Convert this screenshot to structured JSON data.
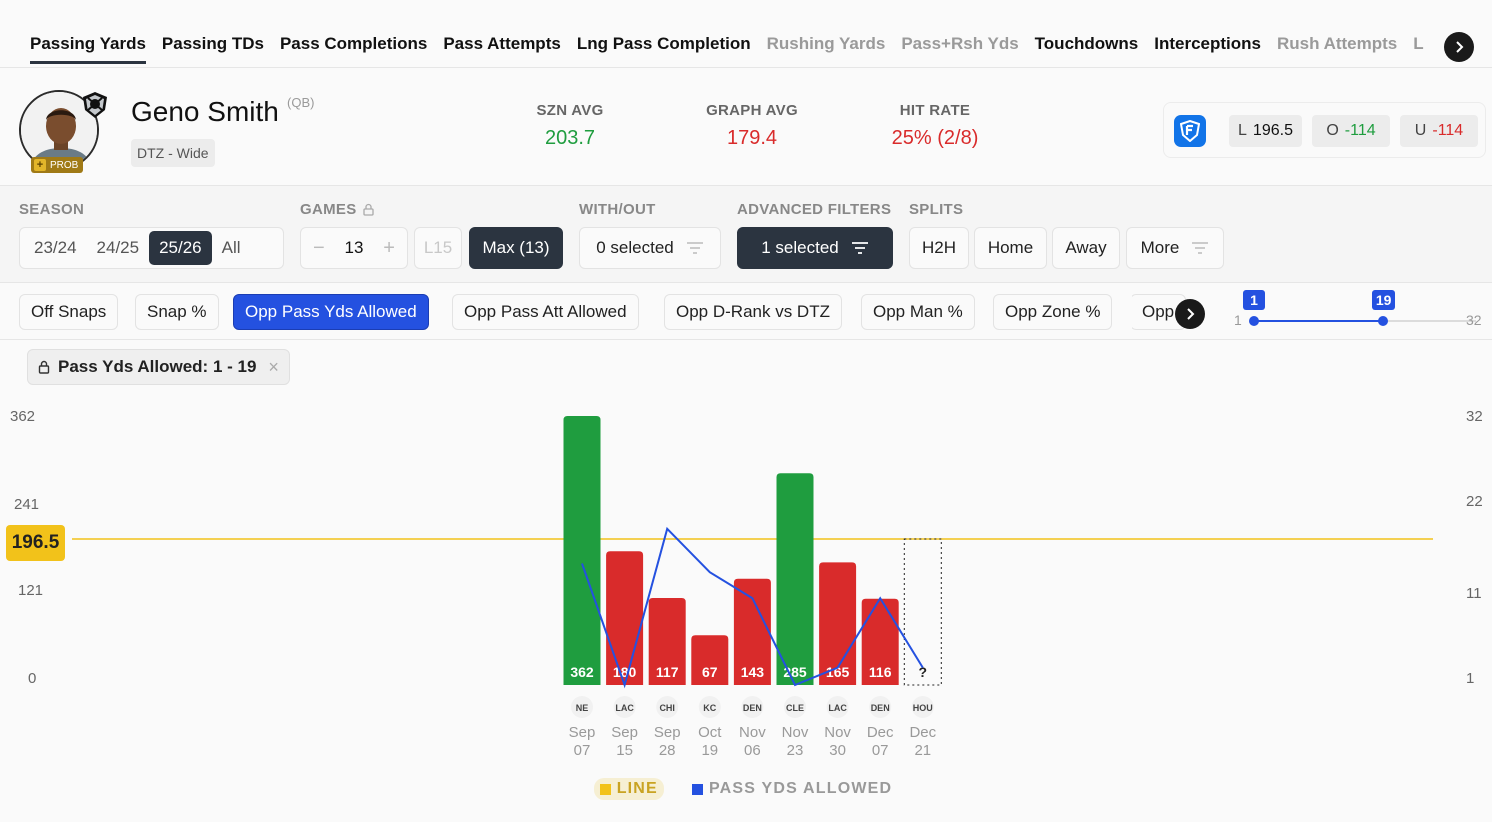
{
  "stat_tabs": [
    {
      "label": "Passing Yards",
      "state": "active"
    },
    {
      "label": "Passing TDs",
      "state": "normal"
    },
    {
      "label": "Pass Completions",
      "state": "normal"
    },
    {
      "label": "Pass Attempts",
      "state": "normal"
    },
    {
      "label": "Lng Pass Completion",
      "state": "normal"
    },
    {
      "label": "Rushing Yards",
      "state": "muted"
    },
    {
      "label": "Pass+Rsh Yds",
      "state": "muted"
    },
    {
      "label": "Touchdowns",
      "state": "normal"
    },
    {
      "label": "Interceptions",
      "state": "normal"
    },
    {
      "label": "Rush Attempts",
      "state": "muted"
    },
    {
      "label": "L",
      "state": "muted"
    }
  ],
  "player": {
    "name": "Geno Smith",
    "position": "(QB)",
    "matchup": "DTZ - Wide",
    "status_badge": "PROB",
    "status_plus": "+"
  },
  "stats": {
    "szn_avg": {
      "label": "SZN AVG",
      "value": "203.7"
    },
    "graph_avg": {
      "label": "GRAPH AVG",
      "value": "179.4"
    },
    "hit_rate": {
      "label": "HIT RATE",
      "value": "25% (2/8)"
    }
  },
  "odds": {
    "line_prefix": "L",
    "line": "196.5",
    "over_prefix": "O",
    "over": "-114",
    "under_prefix": "U",
    "under": "-114"
  },
  "filters": {
    "season": {
      "label": "SEASON",
      "options": [
        "23/24",
        "24/25",
        "25/26",
        "All"
      ],
      "selected": "25/26"
    },
    "games": {
      "label": "GAMES",
      "minus": "−",
      "value": "13",
      "plus": "+",
      "l15": "L15",
      "max": "Max (13)"
    },
    "with_out": {
      "label": "WITH/OUT",
      "value": "0 selected"
    },
    "advanced": {
      "label": "ADVANCED FILTERS",
      "value": "1 selected"
    },
    "splits": {
      "label": "SPLITS",
      "options": [
        "H2H",
        "Home",
        "Away",
        "More"
      ]
    }
  },
  "metric_chips": [
    {
      "label": "Off Snaps",
      "active": false
    },
    {
      "label": "Snap %",
      "active": false
    },
    {
      "label": "Opp Pass Yds Allowed",
      "active": true
    },
    {
      "label": "Opp Pass Att Allowed",
      "active": false
    },
    {
      "label": "Opp D-Rank vs DTZ",
      "active": false
    },
    {
      "label": "Opp Man %",
      "active": false
    },
    {
      "label": "Opp Zone %",
      "active": false
    },
    {
      "label": "Opp",
      "active": false
    }
  ],
  "range": {
    "min_tag": "1",
    "max_tag": "19",
    "min_end": "1",
    "max_end": "32",
    "min": 1,
    "max": 19,
    "scale_max": 32
  },
  "active_filter": {
    "label": "Pass Yds Allowed: 1 - 19",
    "close": "×"
  },
  "colors": {
    "hit": "#1f9d3f",
    "miss": "#d92b2b",
    "line": "#f2c21a",
    "overlay": "#2451e0"
  },
  "chart_data": {
    "type": "bar",
    "title": "",
    "categories": [
      "Sep 07",
      "Sep 15",
      "Sep 28",
      "Oct 19",
      "Nov 06",
      "Nov 23",
      "Nov 30",
      "Dec 07",
      "Dec 21"
    ],
    "date_top": [
      "Sep",
      "Sep",
      "Sep",
      "Oct",
      "Nov",
      "Nov",
      "Nov",
      "Dec",
      "Dec"
    ],
    "date_bottom": [
      "07",
      "15",
      "28",
      "19",
      "06",
      "23",
      "30",
      "07",
      "21"
    ],
    "opponents": [
      "NE",
      "LAC",
      "CHI",
      "KC",
      "DEN",
      "CLE",
      "LAC",
      "DEN",
      "HOU"
    ],
    "values": [
      362,
      180,
      117,
      67,
      143,
      285,
      165,
      116,
      null
    ],
    "value_labels": [
      "362",
      "180",
      "117",
      "67",
      "143",
      "285",
      "165",
      "116",
      "?"
    ],
    "line_value": 196.5,
    "line_label": "196.5",
    "ylim": [
      0,
      362
    ],
    "yticks": [
      "362",
      "241",
      "121",
      "0"
    ],
    "overlay": {
      "name": "PASS YDS ALLOWED",
      "values": [
        15,
        1,
        19,
        14,
        11,
        1,
        3,
        11,
        3
      ],
      "ylim": [
        1,
        32
      ],
      "yticks": [
        "32",
        "22",
        "11",
        "1"
      ]
    },
    "legend": [
      {
        "name": "LINE"
      },
      {
        "name": "PASS YDS ALLOWED"
      }
    ]
  }
}
